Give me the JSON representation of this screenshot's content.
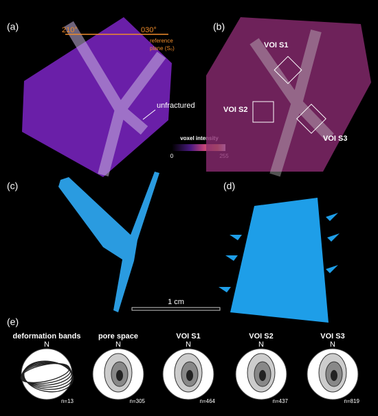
{
  "panels": {
    "a": {
      "label": "(a)",
      "strike_left": "210°",
      "strike_right": "030°",
      "reference_line1": "reference",
      "reference_line2": "plane (S₀)",
      "annotation": "unfractured",
      "colorbar": {
        "title": "voxel intensity",
        "min_label": "0",
        "max_label": "255"
      }
    },
    "b": {
      "label": "(b)",
      "voi": [
        "VOI S1",
        "VOI S2",
        "VOI S3"
      ]
    },
    "c": {
      "label": "(c)",
      "scale_bar": "1 cm"
    },
    "d": {
      "label": "(d)"
    },
    "e": {
      "label": "(e)",
      "stereonets": [
        {
          "title": "deformation bands",
          "north": "N",
          "count": "n=13"
        },
        {
          "title": "pore space",
          "north": "N",
          "count": "n=305"
        },
        {
          "title": "VOI S1",
          "north": "N",
          "count": "n=464"
        },
        {
          "title": "VOI S2",
          "north": "N",
          "count": "n=437"
        },
        {
          "title": "VOI S3",
          "north": "N",
          "count": "n=819"
        }
      ]
    }
  }
}
